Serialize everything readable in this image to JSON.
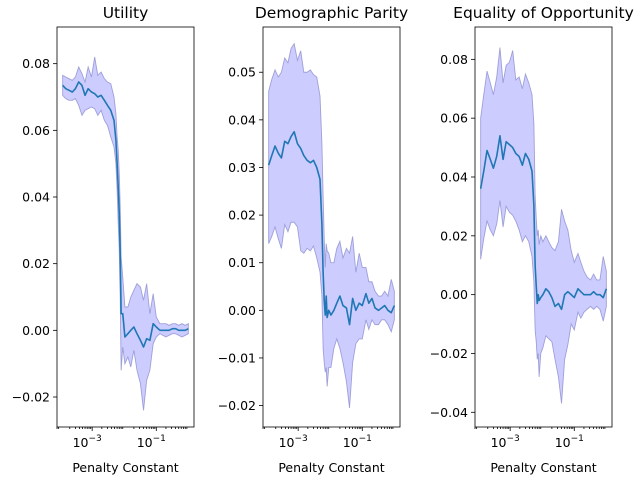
{
  "colors": {
    "line": "#1f77b4",
    "band_fill": "#ccccff",
    "band_edge": "#8f8fcf",
    "background": "#ffffff"
  },
  "chart_data": [
    {
      "type": "line",
      "title": "Utility",
      "xlabel": "Penalty Constant",
      "ylabel": "",
      "xscale": "log",
      "xlim": [
        8e-05,
        1.5
      ],
      "ylim": [
        -0.029,
        0.091
      ],
      "xticks": [
        {
          "value": 0.001,
          "label": "10−3"
        },
        {
          "value": 0.1,
          "label": "10−1"
        }
      ],
      "yticks": [
        {
          "value": -0.02,
          "label": "−0.02"
        },
        {
          "value": 0.0,
          "label": "0.00"
        },
        {
          "value": 0.02,
          "label": "0.02"
        },
        {
          "value": 0.04,
          "label": "0.04"
        },
        {
          "value": 0.06,
          "label": "0.06"
        },
        {
          "value": 0.08,
          "label": "0.08"
        }
      ],
      "grid": false,
      "series": [
        {
          "x": [
            0.00012,
            0.00015,
            0.00019,
            0.00024,
            0.0003,
            0.00038,
            0.00048,
            0.0006,
            0.00075,
            0.00095,
            0.0012,
            0.0015,
            0.0019,
            0.0024,
            0.003,
            0.0038,
            0.0048,
            0.0055,
            0.006,
            0.0065,
            0.007,
            0.0075,
            0.008,
            0.009,
            0.0105,
            0.013,
            0.016,
            0.02,
            0.025,
            0.032,
            0.04,
            0.05,
            0.063,
            0.08,
            0.1,
            0.13,
            0.16,
            0.2,
            0.25,
            0.32,
            0.4,
            0.5,
            0.63,
            0.8,
            1.0
          ],
          "mean": [
            0.0735,
            0.0725,
            0.072,
            0.0715,
            0.0725,
            0.0745,
            0.0735,
            0.0705,
            0.0725,
            0.0715,
            0.071,
            0.07,
            0.0705,
            0.069,
            0.0675,
            0.066,
            0.063,
            0.057,
            0.05,
            0.043,
            0.035,
            0.023,
            0.005,
            0.005,
            -0.002,
            -0.001,
            0.0,
            0.001,
            -0.001,
            -0.003,
            -0.005,
            -0.0025,
            -0.003,
            0.002,
            0.001,
            0.0,
            0.0,
            0.0,
            0.0,
            0.0005,
            0.0005,
            0.0,
            0.0,
            0.0,
            0.0005
          ],
          "lower": [
            0.0705,
            0.0695,
            0.069,
            0.069,
            0.0695,
            0.0675,
            0.0645,
            0.066,
            0.0665,
            0.067,
            0.0665,
            0.0645,
            0.066,
            0.063,
            0.0615,
            0.058,
            0.055,
            0.05,
            0.042,
            0.032,
            0.024,
            0.01,
            -0.012,
            -0.005,
            -0.01,
            -0.008,
            -0.011,
            -0.006,
            -0.012,
            -0.016,
            -0.024,
            -0.015,
            -0.012,
            -0.004,
            -0.002,
            -0.001,
            -0.0015,
            -0.002,
            -0.0015,
            -0.001,
            -0.001,
            -0.0015,
            -0.002,
            -0.0015,
            -0.001
          ],
          "upper": [
            0.0765,
            0.076,
            0.0755,
            0.075,
            0.076,
            0.079,
            0.077,
            0.0745,
            0.079,
            0.076,
            0.082,
            0.0765,
            0.0775,
            0.0755,
            0.0745,
            0.074,
            0.07,
            0.065,
            0.058,
            0.054,
            0.047,
            0.037,
            0.022,
            0.016,
            0.007,
            0.007,
            0.01,
            0.012,
            0.014,
            0.013,
            0.009,
            0.014,
            0.005,
            0.011,
            0.004,
            0.002,
            0.002,
            0.002,
            0.0015,
            0.002,
            0.002,
            0.0015,
            0.002,
            0.0015,
            0.002
          ]
        }
      ]
    },
    {
      "type": "line",
      "title": "Demographic Parity",
      "xlabel": "Penalty Constant",
      "ylabel": "",
      "xscale": "log",
      "xlim": [
        8e-05,
        1.5
      ],
      "ylim": [
        -0.0245,
        0.0595
      ],
      "xticks": [
        {
          "value": 0.001,
          "label": "10−3"
        },
        {
          "value": 0.1,
          "label": "10−1"
        }
      ],
      "yticks": [
        {
          "value": -0.02,
          "label": "−0.02"
        },
        {
          "value": -0.01,
          "label": "−0.01"
        },
        {
          "value": 0.0,
          "label": "0.00"
        },
        {
          "value": 0.01,
          "label": "0.01"
        },
        {
          "value": 0.02,
          "label": "0.02"
        },
        {
          "value": 0.03,
          "label": "0.03"
        },
        {
          "value": 0.04,
          "label": "0.04"
        },
        {
          "value": 0.05,
          "label": "0.05"
        }
      ],
      "grid": false,
      "series": [
        {
          "x": [
            0.00012,
            0.00015,
            0.00019,
            0.00024,
            0.0003,
            0.00038,
            0.00048,
            0.0006,
            0.00075,
            0.00095,
            0.0012,
            0.0015,
            0.0019,
            0.0024,
            0.003,
            0.0038,
            0.0048,
            0.0055,
            0.006,
            0.0065,
            0.007,
            0.0075,
            0.008,
            0.009,
            0.0105,
            0.013,
            0.016,
            0.02,
            0.025,
            0.032,
            0.04,
            0.05,
            0.063,
            0.08,
            0.1,
            0.13,
            0.16,
            0.2,
            0.25,
            0.32,
            0.4,
            0.5,
            0.63,
            0.8,
            1.0
          ],
          "mean": [
            0.0305,
            0.0325,
            0.0345,
            0.033,
            0.032,
            0.0355,
            0.035,
            0.0365,
            0.0375,
            0.035,
            0.034,
            0.0325,
            0.0315,
            0.031,
            0.0315,
            0.03,
            0.0275,
            0.018,
            0.008,
            0.002,
            -0.001,
            0.003,
            -0.0015,
            0.0,
            -0.001,
            0.0,
            0.0015,
            0.003,
            0.001,
            0.0005,
            -0.003,
            0.0025,
            0.0,
            0.0015,
            0.001,
            0.0035,
            0.0015,
            0.0025,
            0.0005,
            0.0,
            0.0005,
            0.001,
            0.0,
            -0.0005,
            0.001
          ],
          "lower": [
            0.014,
            0.0155,
            0.0175,
            0.015,
            0.013,
            0.018,
            0.0165,
            0.0185,
            0.0185,
            0.0175,
            0.0125,
            0.012,
            0.013,
            0.0125,
            0.0135,
            0.011,
            0.008,
            0.003,
            -0.008,
            -0.011,
            -0.013,
            -0.012,
            -0.016,
            -0.012,
            -0.012,
            -0.008,
            -0.006,
            -0.008,
            -0.011,
            -0.015,
            -0.0205,
            -0.011,
            -0.007,
            -0.006,
            -0.006,
            -0.002,
            -0.004,
            -0.002,
            -0.003,
            -0.003,
            -0.002,
            -0.002,
            -0.003,
            -0.0045,
            -0.002
          ],
          "upper": [
            0.046,
            0.0485,
            0.0505,
            0.049,
            0.05,
            0.053,
            0.052,
            0.055,
            0.056,
            0.0525,
            0.0545,
            0.05,
            0.05,
            0.0505,
            0.0495,
            0.049,
            0.045,
            0.035,
            0.024,
            0.015,
            0.009,
            0.014,
            0.0125,
            0.012,
            0.01,
            0.01,
            0.013,
            0.0145,
            0.011,
            0.013,
            0.012,
            0.0155,
            0.008,
            0.012,
            0.009,
            0.009,
            0.006,
            0.006,
            0.004,
            0.003,
            0.003,
            0.004,
            0.003,
            0.0065,
            0.004
          ]
        }
      ]
    },
    {
      "type": "line",
      "title": "Equality of Opportunity",
      "xlabel": "Penalty Constant",
      "ylabel": "",
      "xscale": "log",
      "xlim": [
        8e-05,
        1.5
      ],
      "ylim": [
        -0.045,
        0.091
      ],
      "xticks": [
        {
          "value": 0.001,
          "label": "10−3"
        },
        {
          "value": 0.1,
          "label": "10−1"
        }
      ],
      "yticks": [
        {
          "value": -0.04,
          "label": "−0.04"
        },
        {
          "value": -0.02,
          "label": "−0.02"
        },
        {
          "value": 0.0,
          "label": "0.00"
        },
        {
          "value": 0.02,
          "label": "0.02"
        },
        {
          "value": 0.04,
          "label": "0.04"
        },
        {
          "value": 0.06,
          "label": "0.06"
        },
        {
          "value": 0.08,
          "label": "0.08"
        }
      ],
      "grid": false,
      "series": [
        {
          "x": [
            0.00012,
            0.00015,
            0.00019,
            0.00024,
            0.0003,
            0.00038,
            0.00048,
            0.0006,
            0.00075,
            0.00095,
            0.0012,
            0.0015,
            0.0019,
            0.0024,
            0.003,
            0.0038,
            0.0048,
            0.0055,
            0.006,
            0.0065,
            0.007,
            0.0075,
            0.008,
            0.009,
            0.0105,
            0.013,
            0.016,
            0.02,
            0.025,
            0.032,
            0.04,
            0.05,
            0.063,
            0.08,
            0.1,
            0.13,
            0.16,
            0.2,
            0.25,
            0.32,
            0.4,
            0.5,
            0.63,
            0.8,
            1.0
          ],
          "mean": [
            0.036,
            0.042,
            0.049,
            0.046,
            0.043,
            0.047,
            0.054,
            0.046,
            0.052,
            0.051,
            0.05,
            0.048,
            0.047,
            0.044,
            0.048,
            0.046,
            0.042,
            0.03,
            0.01,
            0.003,
            -0.003,
            0.0,
            -0.002,
            -0.001,
            0.0,
            0.002,
            0.001,
            -0.001,
            -0.004,
            -0.003,
            -0.005,
            0.0,
            0.001,
            0.0,
            -0.001,
            0.002,
            0.001,
            0.0,
            0.0,
            0.0,
            0.001,
            0.0,
            0.0,
            -0.001,
            0.002
          ],
          "lower": [
            0.012,
            0.019,
            0.025,
            0.022,
            0.02,
            0.024,
            0.032,
            0.023,
            0.03,
            0.028,
            0.027,
            0.025,
            0.022,
            0.018,
            0.02,
            0.018,
            0.013,
            0.004,
            -0.012,
            -0.016,
            -0.022,
            -0.02,
            -0.028,
            -0.02,
            -0.018,
            -0.014,
            -0.015,
            -0.016,
            -0.022,
            -0.028,
            -0.037,
            -0.022,
            -0.017,
            -0.01,
            -0.012,
            -0.006,
            -0.008,
            -0.006,
            -0.005,
            -0.004,
            -0.005,
            -0.004,
            -0.005,
            -0.009,
            -0.004
          ],
          "upper": [
            0.06,
            0.068,
            0.076,
            0.072,
            0.068,
            0.074,
            0.084,
            0.072,
            0.078,
            0.079,
            0.083,
            0.073,
            0.074,
            0.07,
            0.075,
            0.072,
            0.068,
            0.058,
            0.034,
            0.026,
            0.02,
            0.022,
            0.017,
            0.02,
            0.018,
            0.02,
            0.018,
            0.016,
            0.015,
            0.018,
            0.029,
            0.025,
            0.022,
            0.015,
            0.011,
            0.014,
            0.011,
            0.008,
            0.006,
            0.005,
            0.007,
            0.005,
            0.005,
            0.013,
            0.008
          ]
        }
      ]
    }
  ]
}
